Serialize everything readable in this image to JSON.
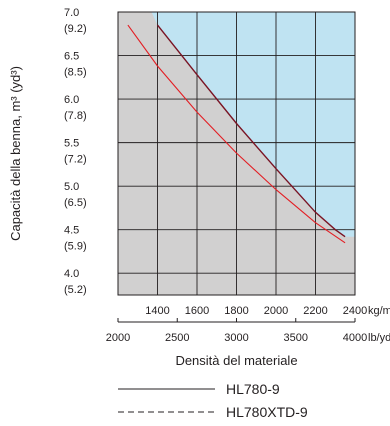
{
  "chart_data": {
    "type": "line",
    "xlabel": "Densità del materiale",
    "ylabel": "Capacità della benna, m³ (yd³)",
    "x_unit_primary": "kg/m³",
    "x_unit_secondary": "lb/yd³",
    "xlim": [
      1200,
      2400
    ],
    "ylim": [
      3.75,
      7.0
    ],
    "x_ticks": [
      "1400",
      "1600",
      "1800",
      "2000",
      "2200",
      "2400"
    ],
    "x_ticks_secondary": [
      "2000",
      "2500",
      "3000",
      "3500",
      "4000"
    ],
    "y_ticks": [
      {
        "value": 7.0,
        "m3": "7.0",
        "yd3": "(9.2)"
      },
      {
        "value": 6.5,
        "m3": "6.5",
        "yd3": "(8.5)"
      },
      {
        "value": 6.0,
        "m3": "6.0",
        "yd3": "(7.8)"
      },
      {
        "value": 5.5,
        "m3": "5.5",
        "yd3": "(7.2)"
      },
      {
        "value": 5.0,
        "m3": "5.0",
        "yd3": "(6.5)"
      },
      {
        "value": 4.5,
        "m3": "4.5",
        "yd3": "(5.9)"
      },
      {
        "value": 4.0,
        "m3": "4.0",
        "yd3": "(5.2)"
      }
    ],
    "grid": true,
    "legend_position": "bottom",
    "colors": {
      "region_upper": "#bfe3f2",
      "region_lower": "#d1d0d0",
      "series_red": "#e31e24",
      "series_dark": "#7a1424",
      "grid": "#231f20"
    },
    "series": [
      {
        "name": "HL780-9",
        "style": "solid",
        "x": [
          1250,
          1400,
          1600,
          1800,
          2000,
          2200,
          2350
        ],
        "y": [
          6.85,
          6.38,
          5.85,
          5.38,
          4.96,
          4.58,
          4.35
        ]
      },
      {
        "name": "HL780XTD-9",
        "style": "dashed",
        "x": [
          1400,
          1600,
          1800,
          2000,
          2200,
          2300,
          2350
        ],
        "y": [
          6.85,
          6.28,
          5.72,
          5.2,
          4.7,
          4.5,
          4.42
        ]
      }
    ]
  }
}
